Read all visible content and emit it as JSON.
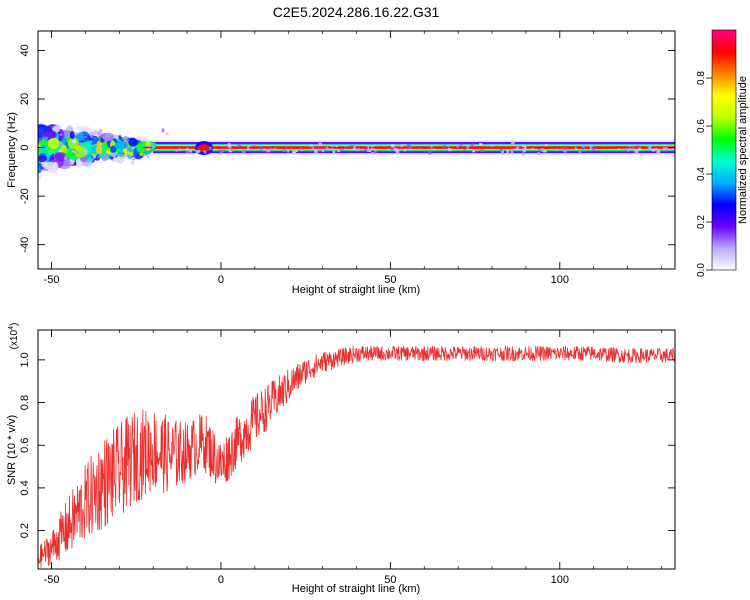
{
  "title": "C2E5.2024.286.16.22.G31",
  "chart_data": [
    {
      "type": "heatmap",
      "xlabel": "Height of straight line (km)",
      "ylabel": "Frequency (Hz)",
      "xlim": [
        -54,
        134
      ],
      "ylim": [
        -50,
        48
      ],
      "xticks": [
        -50,
        0,
        50,
        100
      ],
      "yticks": [
        -40,
        -20,
        0,
        20,
        40
      ],
      "xtick_labels": [
        "-50",
        "0",
        "50",
        "100"
      ],
      "ytick_labels": [
        "-40",
        "-20",
        "0",
        "20",
        "40"
      ],
      "grid": false,
      "ridge": {
        "frequency_hz": 0,
        "x_start": -54,
        "x_end": 134,
        "peak_amplitude": 0.95,
        "noisy_region_end_km": -25
      },
      "colorbar": {
        "label": "Normalized spectral amplitude",
        "range": [
          0,
          1
        ],
        "ticks": [
          0.0,
          0.2,
          0.4,
          0.6,
          0.8
        ],
        "tick_labels": [
          "0.0",
          "0.2",
          "0.4",
          "0.6",
          "0.8"
        ],
        "colors": [
          "#ffffff",
          "#b8a8ff",
          "#6a00ff",
          "#0000ff",
          "#00b0ff",
          "#00ffd0",
          "#00ff00",
          "#c0ff00",
          "#ffff00",
          "#ff8000",
          "#ff0000",
          "#ff0080"
        ]
      }
    },
    {
      "type": "line",
      "xlabel": "Height of straight line (km)",
      "ylabel": "SNR (10 * v/v)",
      "multiplier": "(x10",
      "multiplier_exp": "4",
      "multiplier_close": ")",
      "xlim": [
        -54,
        134
      ],
      "ylim": [
        0.02,
        1.14
      ],
      "xticks": [
        -50,
        0,
        50,
        100
      ],
      "yticks": [
        0.2,
        0.4,
        0.6,
        0.8,
        1.0
      ],
      "xtick_labels": [
        "-50",
        "0",
        "50",
        "100"
      ],
      "ytick_labels": [
        "0.2",
        "0.4",
        "0.6",
        "0.8",
        "1.0"
      ],
      "grid": false,
      "series": [
        {
          "color": "#e8312f",
          "x": [
            -54,
            -50,
            -45,
            -40,
            -35,
            -30,
            -25,
            -20,
            -15,
            -10,
            -5,
            0,
            5,
            10,
            15,
            20,
            25,
            30,
            35,
            40,
            45,
            50,
            60,
            70,
            80,
            90,
            100,
            110,
            120,
            134
          ],
          "y": [
            0.07,
            0.12,
            0.22,
            0.33,
            0.42,
            0.48,
            0.55,
            0.58,
            0.55,
            0.57,
            0.62,
            0.5,
            0.62,
            0.72,
            0.8,
            0.88,
            0.95,
            0.99,
            1.01,
            1.03,
            1.03,
            1.03,
            1.03,
            1.03,
            1.03,
            1.03,
            1.03,
            1.03,
            1.02,
            1.02
          ],
          "band": [
            0.05,
            0.08,
            0.14,
            0.18,
            0.22,
            0.22,
            0.22,
            0.2,
            0.18,
            0.14,
            0.14,
            0.12,
            0.12,
            0.12,
            0.1,
            0.08,
            0.06,
            0.05,
            0.04,
            0.04,
            0.035,
            0.035,
            0.035,
            0.035,
            0.035,
            0.035,
            0.035,
            0.035,
            0.035,
            0.035
          ]
        }
      ]
    }
  ]
}
